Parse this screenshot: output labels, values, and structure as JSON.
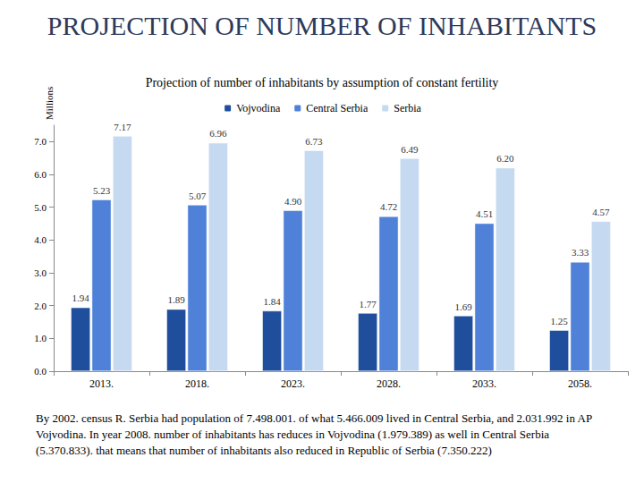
{
  "chart_data": {
    "type": "bar",
    "title": "PROJECTION OF NUMBER OF INHABITANTS",
    "subtitle": "Projection of number of inhabitants by assumption of constant fertility",
    "y_label": "Millions",
    "categories": [
      "2013.",
      "2018.",
      "2023.",
      "2028.",
      "2033.",
      "2058."
    ],
    "series": [
      {
        "name": "Vojvodina",
        "color": "#1f4e9c",
        "values": [
          1.94,
          1.89,
          1.84,
          1.77,
          1.69,
          1.25
        ],
        "value_labels": [
          "1.94",
          "1.89",
          "1.84",
          "1.77",
          "1.69",
          "1.25"
        ]
      },
      {
        "name": "Central Serbia",
        "color": "#4f81d8",
        "values": [
          5.23,
          5.07,
          4.9,
          4.72,
          4.51,
          3.33
        ],
        "value_labels": [
          "5.23",
          "5.07",
          "4.90",
          "4.72",
          "4.51",
          "3.33"
        ]
      },
      {
        "name": "Serbia",
        "color": "#c5d9f1",
        "values": [
          7.17,
          6.96,
          6.73,
          6.49,
          6.2,
          4.57
        ],
        "value_labels": [
          "7.17",
          "6.96",
          "6.73",
          "6.49",
          "6.20",
          "4.57"
        ]
      }
    ],
    "ylim": [
      0,
      7.5
    ],
    "yticks": [
      {
        "value": 0,
        "label": "0.0"
      },
      {
        "value": 1,
        "label": "1.0"
      },
      {
        "value": 2,
        "label": "2.0"
      },
      {
        "value": 3,
        "label": "3.0"
      },
      {
        "value": 4,
        "label": "4.0"
      },
      {
        "value": 5,
        "label": "5.0"
      },
      {
        "value": 6,
        "label": "6.0"
      },
      {
        "value": 7,
        "label": "7.0"
      }
    ],
    "grid": false,
    "legend": "top",
    "data_labels": true,
    "annotations": [
      "By 2002. census R. Serbia had population of 7.498.001. of what 5.466.009 lived in Central Serbia, and 2.031.992 in AP Vojvodina. In year 2008. number of inhabitants has reduces in Vojvodina (1.979.389) as well in Central Serbia (5.370.833). that means that number of inhabitants also reduced in Republic of Serbia (7.350.222)"
    ]
  }
}
